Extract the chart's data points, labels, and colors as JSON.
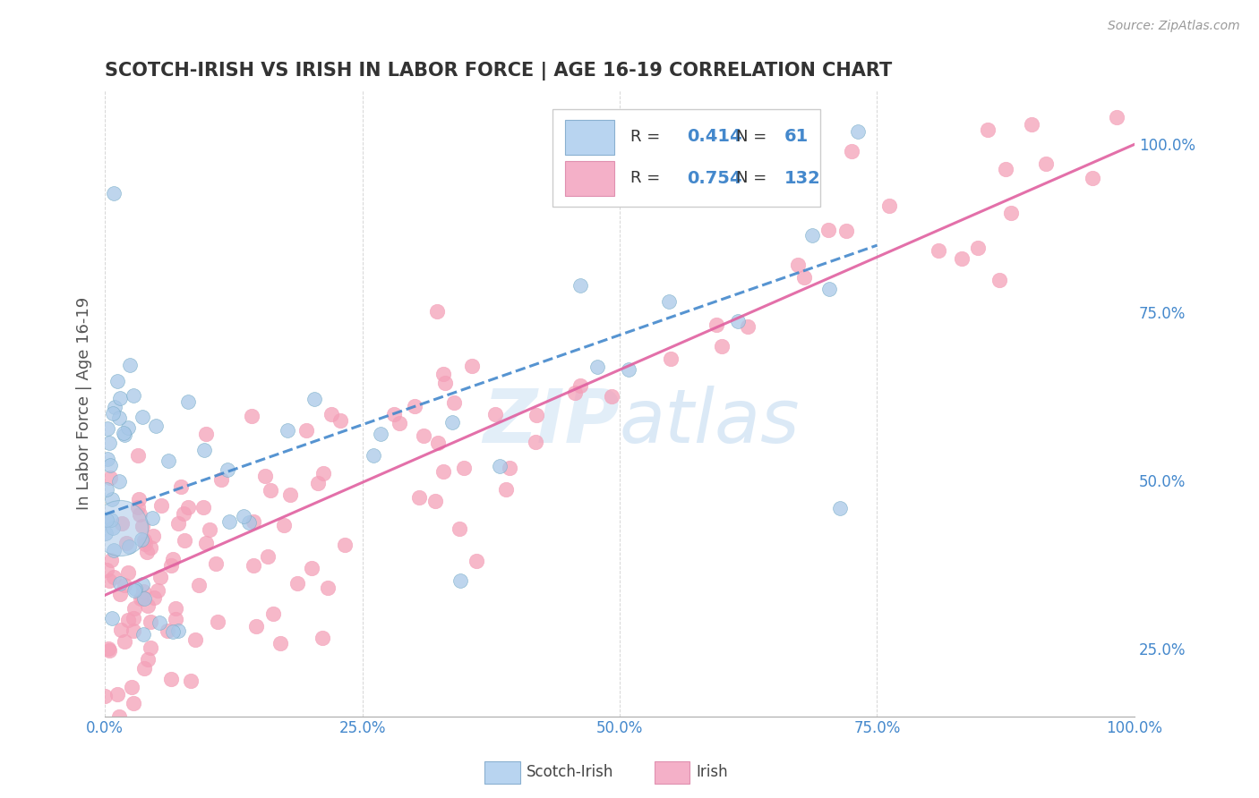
{
  "title": "SCOTCH-IRISH VS IRISH IN LABOR FORCE | AGE 16-19 CORRELATION CHART",
  "source_text": "Source: ZipAtlas.com",
  "ylabel": "In Labor Force | Age 16-19",
  "xlim": [
    0.0,
    100.0
  ],
  "ylim": [
    15.0,
    108.0
  ],
  "xticks": [
    0.0,
    25.0,
    50.0,
    75.0,
    100.0
  ],
  "xtick_labels": [
    "0.0%",
    "25.0%",
    "50.0%",
    "75.0%",
    "100.0%"
  ],
  "yticks_right": [
    25.0,
    50.0,
    75.0,
    100.0
  ],
  "ytick_labels_right": [
    "25.0%",
    "50.0%",
    "75.0%",
    "100.0%"
  ],
  "scotch_irish_color": "#a8c8e8",
  "scotch_irish_edge": "#7aaec8",
  "irish_color": "#f4a0b8",
  "irish_edge": "#e080a0",
  "scotch_irish_line_color": "#4488cc",
  "irish_line_color": "#e060a0",
  "background_color": "#ffffff",
  "grid_color": "#cccccc",
  "title_color": "#333333",
  "label_color": "#555555",
  "tick_color_blue": "#4488cc",
  "legend_blue_color": "#4488cc",
  "watermark_color": "#d0e4f4",
  "scotch_irish_R": 0.414,
  "scotch_irish_N": 61,
  "irish_R": 0.754,
  "irish_N": 132,
  "scotch_irish_line_x0": 0.0,
  "scotch_irish_line_y0": 45.0,
  "scotch_irish_line_x1": 75.0,
  "scotch_irish_line_y1": 85.0,
  "irish_line_x0": 0.0,
  "irish_line_y0": 33.0,
  "irish_line_x1": 100.0,
  "irish_line_y1": 100.0
}
